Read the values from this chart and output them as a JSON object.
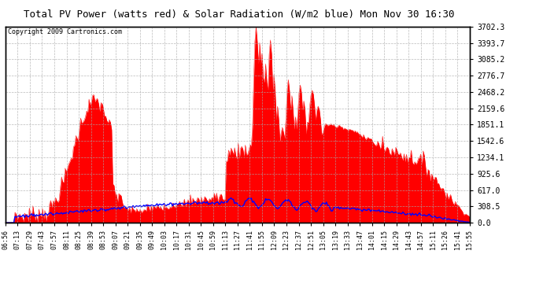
{
  "title": "Total PV Power (watts red) & Solar Radiation (W/m2 blue) Mon Nov 30 16:30",
  "copyright": "Copyright 2009 Cartronics.com",
  "background_color": "#ffffff",
  "plot_bg_color": "#ffffff",
  "grid_color": "#aaaaaa",
  "yticks": [
    0.0,
    308.5,
    617.0,
    925.6,
    1234.1,
    1542.6,
    1851.1,
    2159.6,
    2468.2,
    2776.7,
    3085.2,
    3393.7,
    3702.3
  ],
  "ymax": 3702.3,
  "pv_color": "#ff0000",
  "solar_color": "#0000ff",
  "x_labels": [
    "06:56",
    "07:13",
    "07:29",
    "07:43",
    "07:57",
    "08:11",
    "08:25",
    "08:39",
    "08:53",
    "09:07",
    "09:21",
    "09:35",
    "09:49",
    "10:03",
    "10:17",
    "10:31",
    "10:45",
    "10:59",
    "11:13",
    "11:27",
    "11:41",
    "11:55",
    "12:09",
    "12:23",
    "12:37",
    "12:51",
    "13:05",
    "13:19",
    "13:33",
    "13:47",
    "14:01",
    "14:15",
    "14:29",
    "14:43",
    "14:57",
    "15:11",
    "15:26",
    "15:41",
    "15:55"
  ]
}
